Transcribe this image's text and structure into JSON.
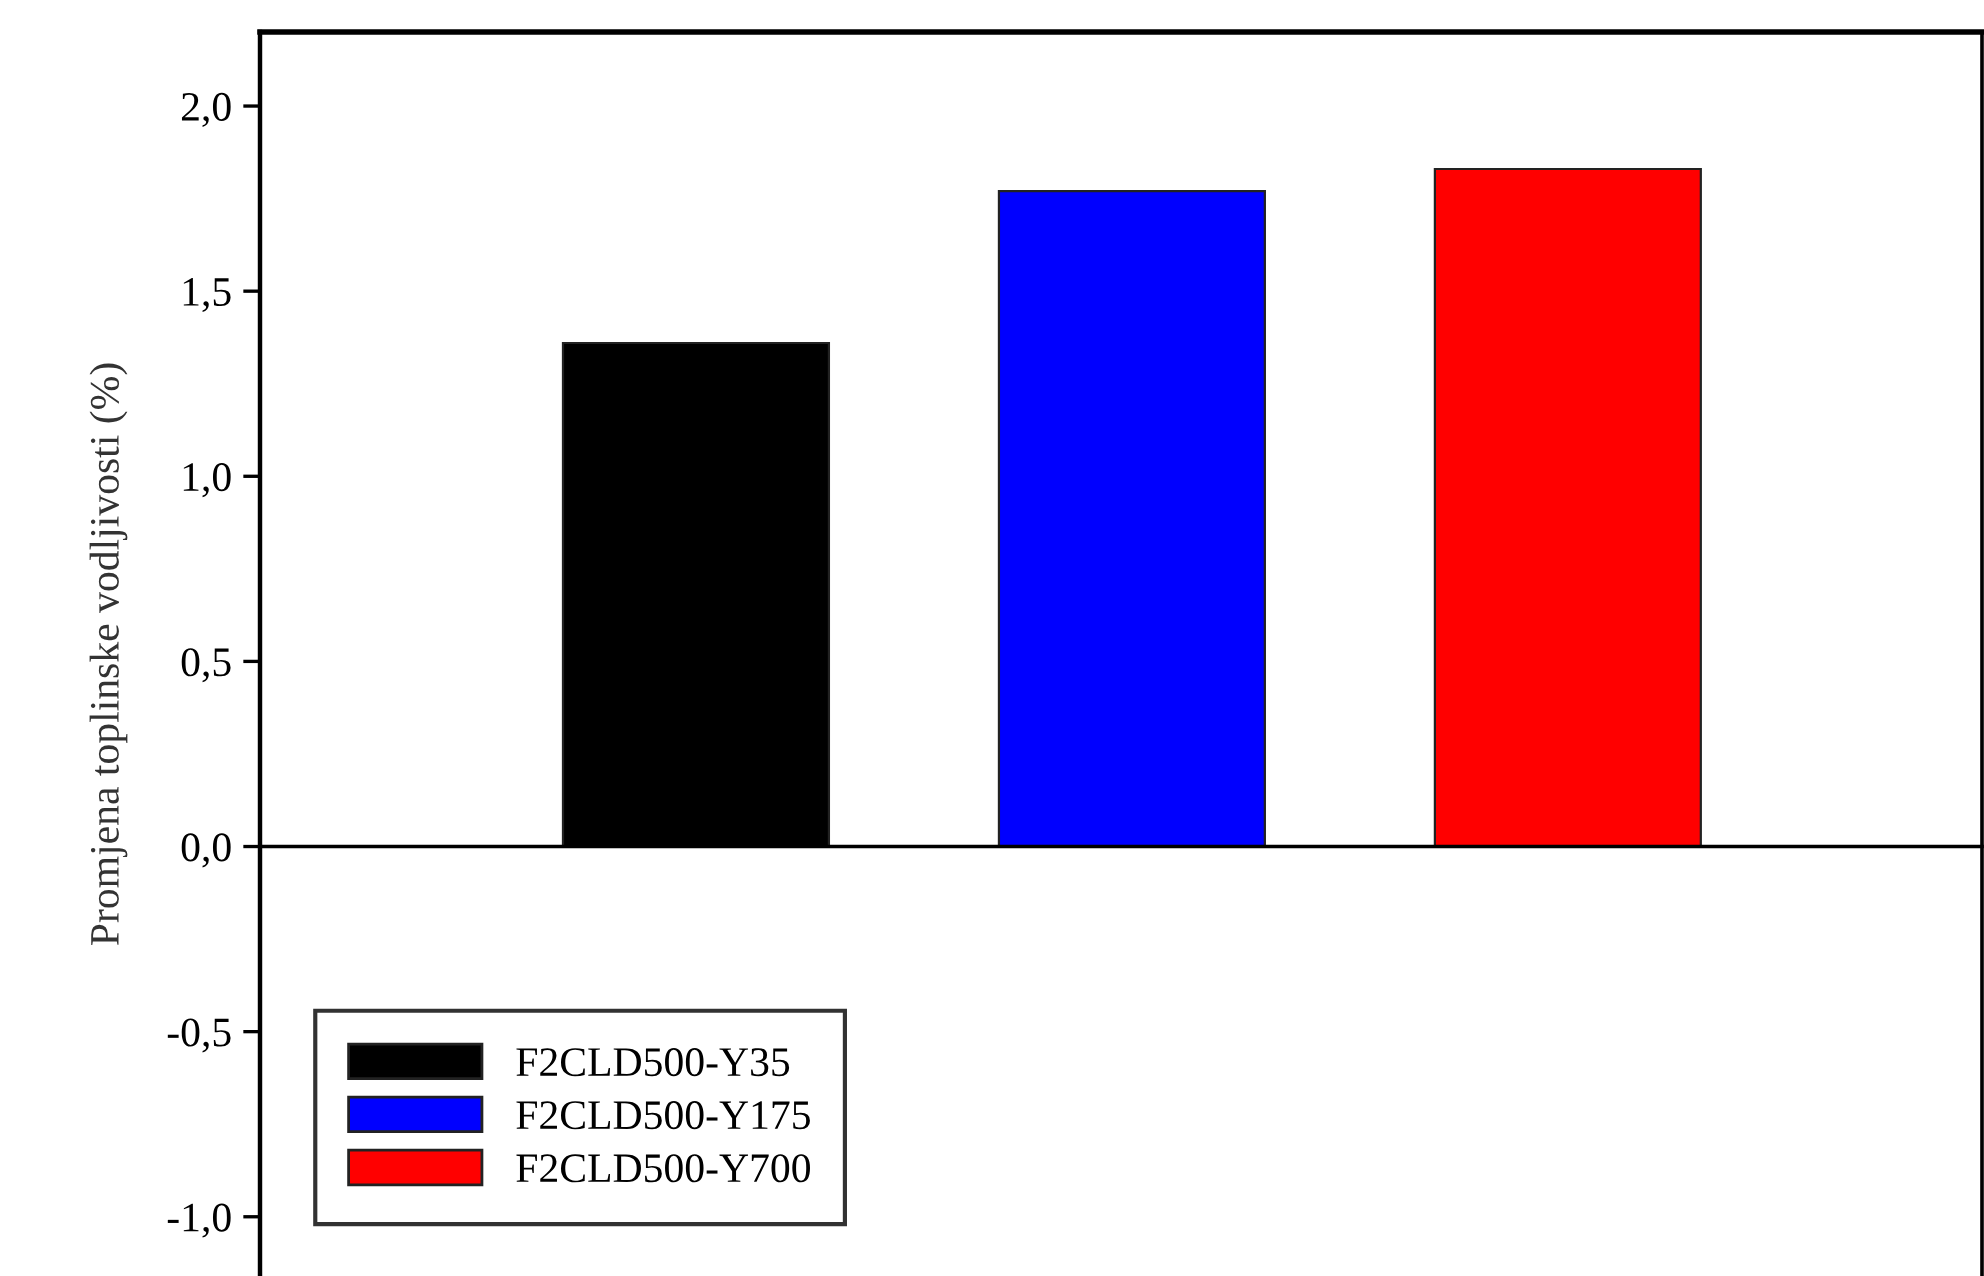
{
  "chart_data": {
    "type": "bar",
    "ylabel": "Promjena toplinske vodljivosti (%)",
    "categories": [
      null,
      null,
      null
    ],
    "series": [
      {
        "name": "F2CLD500-Y35",
        "color": "#000000",
        "values": [
          1.36,
          null,
          null
        ]
      },
      {
        "name": "F2CLD500-Y175",
        "color": "#0000ff",
        "values": [
          null,
          1.77,
          null
        ]
      },
      {
        "name": "F2CLD500-Y700",
        "color": "#ff0000",
        "values": [
          null,
          null,
          1.83
        ]
      }
    ],
    "ylim": [
      -1.16,
      2.2
    ],
    "yticks": [
      {
        "value": -1.0,
        "label": "-1,0"
      },
      {
        "value": -0.5,
        "label": "-0,5"
      },
      {
        "value": 0.0,
        "label": "0,0"
      },
      {
        "value": 0.5,
        "label": "0,5"
      },
      {
        "value": 1.0,
        "label": "1,0"
      },
      {
        "value": 1.5,
        "label": "1,5"
      },
      {
        "value": 2.0,
        "label": "2,0"
      }
    ],
    "legend": "bottom left"
  }
}
